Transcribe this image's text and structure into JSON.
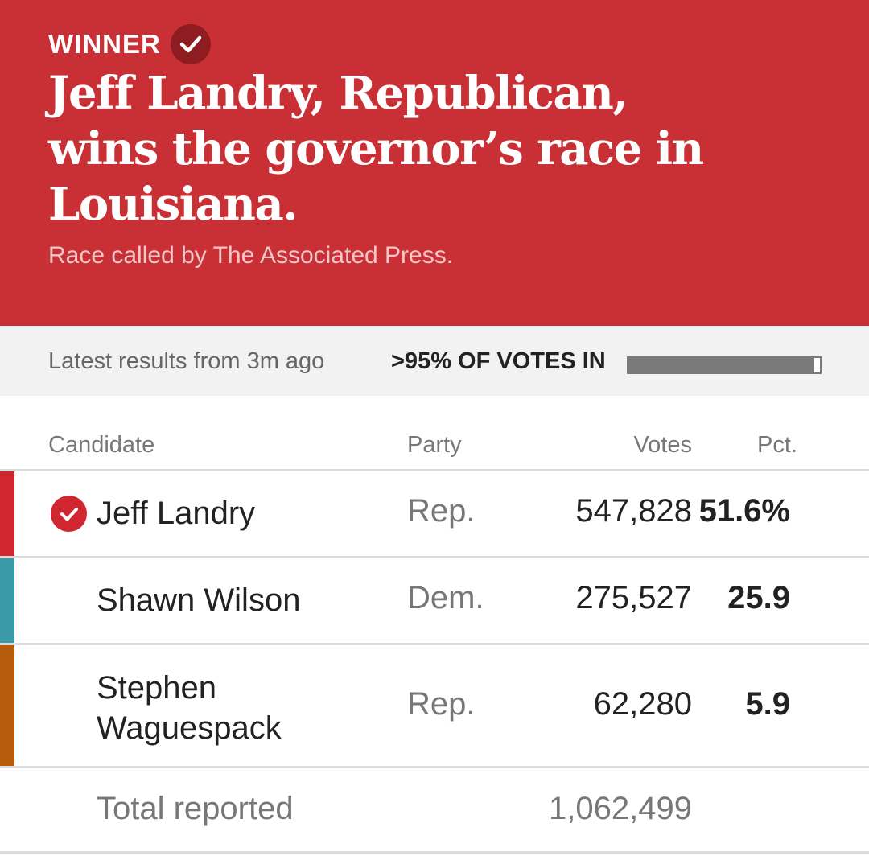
{
  "banner": {
    "winner_label": "WINNER",
    "headline": "Jeff Landry, Republican, wins the governor’s race in Louisiana.",
    "called_by": "Race called by The Associated Press.",
    "background_color": "#c83035"
  },
  "status": {
    "latest": "Latest results from 3m ago",
    "votes_in": ">95% OF VOTES IN",
    "votes_in_fraction": 0.97
  },
  "table": {
    "headers": {
      "candidate": "Candidate",
      "party": "Party",
      "votes": "Votes",
      "pct": "Pct."
    },
    "rows": [
      {
        "name": "Jeff Landry",
        "party": "Rep.",
        "votes": "547,828",
        "pct": "51.6%",
        "winner": true,
        "color": "#d0262f"
      },
      {
        "name": "Shawn Wilson",
        "party": "Dem.",
        "votes": "275,527",
        "pct": "25.9",
        "winner": false,
        "color": "#3a9aa8"
      },
      {
        "name": "Stephen Waguespack",
        "party": "Rep.",
        "votes": "62,280",
        "pct": "5.9",
        "winner": false,
        "color": "#b75c0a"
      }
    ],
    "total": {
      "label": "Total reported",
      "votes": "1,062,499"
    }
  }
}
